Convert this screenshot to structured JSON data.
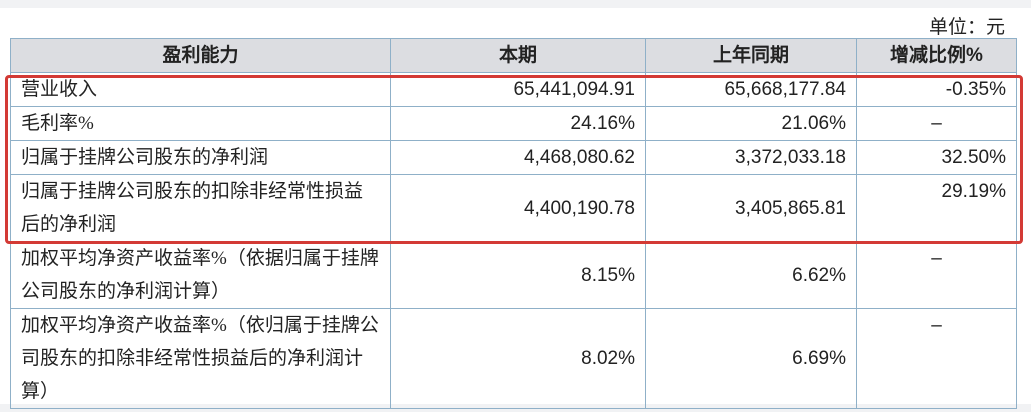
{
  "unit_label": "单位：元",
  "table": {
    "headers": [
      "盈利能力",
      "本期",
      "上年同期",
      "增减比例%"
    ],
    "rows": [
      {
        "label": "营业收入",
        "current": "65,441,094.91",
        "prior": "65,668,177.84",
        "change": "-0.35%"
      },
      {
        "label": "毛利率%",
        "current": "24.16%",
        "prior": "21.06%",
        "change": "–"
      },
      {
        "label": "归属于挂牌公司股东的净利润",
        "current": "4,468,080.62",
        "prior": "3,372,033.18",
        "change": "32.50%"
      },
      {
        "label": "归属于挂牌公司股东的扣除非经常性损益后的净利润",
        "current": "4,400,190.78",
        "prior": "3,405,865.81",
        "change": "29.19%"
      },
      {
        "label": "加权平均净资产收益率%（依据归属于挂牌公司股东的净利润计算）",
        "current": "8.15%",
        "prior": "6.62%",
        "change": "–"
      },
      {
        "label": "加权平均净资产收益率%（依归属于挂牌公司股东的扣除非经常性损益后的净利润计算）",
        "current": "8.02%",
        "prior": "6.69%",
        "change": "–"
      }
    ]
  },
  "highlight_color": "#d33a35"
}
